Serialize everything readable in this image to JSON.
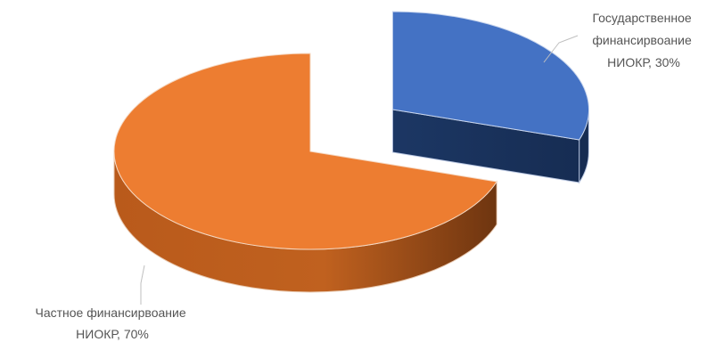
{
  "chart_data": {
    "type": "pie",
    "style": "3d-exploded",
    "legend": "none",
    "title": "",
    "slices": [
      {
        "label_lines": [
          "Государственное",
          "финансирвоание",
          "НИОКР, 30%"
        ],
        "value": 30,
        "color": "#4472c4",
        "side_color": "#1f3864",
        "exploded": true
      },
      {
        "label_lines": [
          "Частное финансирвоание",
          "НИОКР, 70%"
        ],
        "value": 70,
        "color": "#ed7d31",
        "side_color": "#a04a10",
        "exploded": false
      }
    ]
  }
}
